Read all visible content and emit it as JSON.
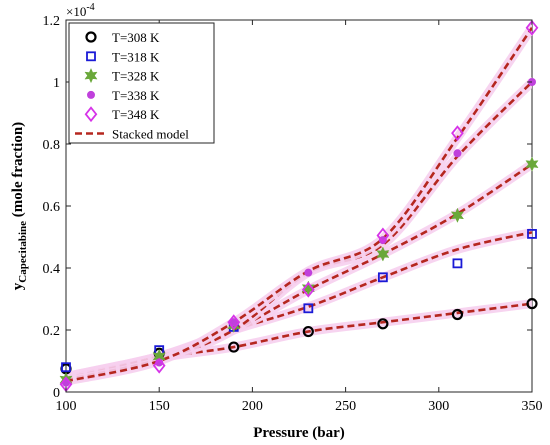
{
  "chart_data": {
    "type": "scatter",
    "xlabel": "Pressure (bar)",
    "ylabel_main": "y",
    "ylabel_sub": "Capecitabine",
    "ylabel_rest": " (mole fraction)",
    "y_exponent_base": "×10",
    "y_exponent_power": "-4",
    "xlim": [
      100,
      350
    ],
    "ylim": [
      0,
      1.2
    ],
    "x_ticks": [
      100,
      150,
      200,
      250,
      300,
      350
    ],
    "y_ticks": [
      0,
      0.2,
      0.4,
      0.6,
      0.8,
      1.0,
      1.2
    ],
    "x_tick_labels": [
      "100",
      "150",
      "200",
      "250",
      "300",
      "350"
    ],
    "y_tick_labels": [
      "0",
      "0.2",
      "0.4",
      "0.6",
      "0.8",
      "1",
      "1.2"
    ],
    "grid": false,
    "legend_position": "top-left",
    "series": [
      {
        "name": "T=308 K",
        "marker": "circle",
        "color": "#000000",
        "x": [
          100,
          150,
          190,
          230,
          270,
          310,
          350
        ],
        "y": [
          0.075,
          0.125,
          0.145,
          0.195,
          0.22,
          0.25,
          0.285
        ]
      },
      {
        "name": "T=318 K",
        "marker": "square",
        "color": "#1a1ad6",
        "x": [
          100,
          150,
          190,
          230,
          270,
          310,
          350
        ],
        "y": [
          0.08,
          0.135,
          0.21,
          0.27,
          0.37,
          0.415,
          0.51
        ]
      },
      {
        "name": "T=328 K",
        "marker": "star",
        "color": "#6aa83a",
        "x": [
          100,
          150,
          190,
          230,
          270,
          310,
          350
        ],
        "y": [
          0.04,
          0.115,
          0.215,
          0.335,
          0.445,
          0.57,
          0.735
        ]
      },
      {
        "name": "T=338 K",
        "marker": "dot",
        "color": "#c040dc",
        "x": [
          100,
          150,
          190,
          230,
          270,
          310,
          350
        ],
        "y": [
          0.03,
          0.095,
          0.225,
          0.385,
          0.49,
          0.77,
          1.0
        ]
      },
      {
        "name": "T=348 K",
        "marker": "diamond",
        "color": "#d633e8",
        "x": [
          100,
          150,
          190,
          230,
          270,
          310,
          350
        ],
        "y": [
          0.025,
          0.085,
          0.225,
          0.33,
          0.505,
          0.835,
          1.175
        ]
      }
    ],
    "model": {
      "name": "Stacked model",
      "color": "#b5271f",
      "curves": [
        {
          "x": [
            100,
            150,
            190,
            230,
            270,
            310,
            350
          ],
          "y": [
            0.05,
            0.11,
            0.145,
            0.195,
            0.225,
            0.255,
            0.285
          ]
        },
        {
          "x": [
            100,
            150,
            190,
            230,
            270,
            310,
            350
          ],
          "y": [
            0.05,
            0.115,
            0.2,
            0.275,
            0.37,
            0.46,
            0.515
          ]
        },
        {
          "x": [
            100,
            150,
            190,
            230,
            270,
            310,
            350
          ],
          "y": [
            0.045,
            0.115,
            0.2,
            0.33,
            0.445,
            0.575,
            0.735
          ]
        },
        {
          "x": [
            100,
            150,
            190,
            230,
            270,
            310,
            350
          ],
          "y": [
            0.04,
            0.105,
            0.2,
            0.385,
            0.475,
            0.76,
            1.0
          ]
        },
        {
          "x": [
            100,
            150,
            190,
            230,
            270,
            310,
            350
          ],
          "y": [
            0.035,
            0.1,
            0.225,
            0.39,
            0.495,
            0.82,
            1.175
          ]
        }
      ]
    }
  }
}
